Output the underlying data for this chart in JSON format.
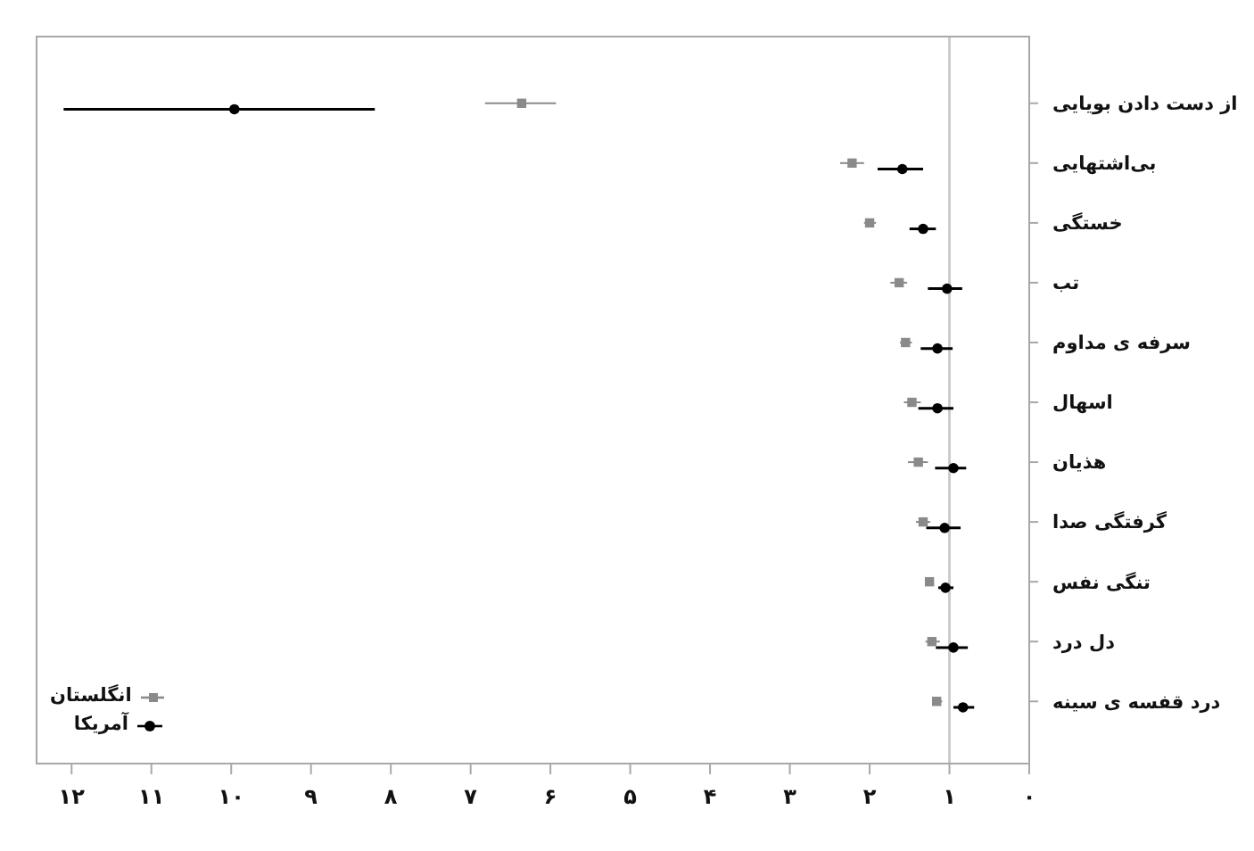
{
  "chart_data": {
    "type": "scatter",
    "orientation": "horizontal",
    "categories": [
      "از دست دادن بویایی",
      "بی‌اشتهایی",
      "خستگی",
      "تب",
      "سرفه ی مداوم",
      "اسهال",
      "هذیان",
      "گرفتگی صدا",
      "تنگی نفس",
      "دل درد",
      "درد قفسه ی سینه"
    ],
    "series": [
      {
        "name": "انگلستان",
        "color": "#8a8a8a",
        "marker": "square",
        "values": [
          6.36,
          2.22,
          2.0,
          1.63,
          1.55,
          1.47,
          1.39,
          1.33,
          1.25,
          1.22,
          1.16
        ],
        "errors": [
          [
            5.93,
            6.82
          ],
          [
            2.07,
            2.37
          ],
          [
            1.92,
            2.07
          ],
          [
            1.53,
            1.74
          ],
          [
            1.47,
            1.62
          ],
          [
            1.36,
            1.57
          ],
          [
            1.27,
            1.52
          ],
          [
            1.24,
            1.42
          ],
          null,
          [
            1.12,
            1.3
          ],
          [
            1.09,
            1.21
          ]
        ]
      },
      {
        "name": "آمریکا",
        "color": "#000000",
        "marker": "circle",
        "values": [
          9.96,
          1.59,
          1.33,
          1.03,
          1.15,
          1.15,
          0.95,
          1.06,
          1.05,
          0.95,
          0.83
        ],
        "errors": [
          [
            8.2,
            12.1
          ],
          [
            1.33,
            1.9
          ],
          [
            1.17,
            1.5
          ],
          [
            0.84,
            1.27
          ],
          [
            0.96,
            1.36
          ],
          [
            0.95,
            1.39
          ],
          [
            0.79,
            1.18
          ],
          [
            0.86,
            1.29
          ],
          [
            0.95,
            1.14
          ],
          [
            0.77,
            1.17
          ],
          [
            0.69,
            0.95
          ]
        ]
      }
    ],
    "xlim": [
      12.45,
      0
    ],
    "xticks": [
      {
        "value": 12,
        "label": "۱۲"
      },
      {
        "value": 11,
        "label": "۱۱"
      },
      {
        "value": 10,
        "label": "۱۰"
      },
      {
        "value": 9,
        "label": "۹"
      },
      {
        "value": 8,
        "label": "۸"
      },
      {
        "value": 7,
        "label": "۷"
      },
      {
        "value": 6,
        "label": "۶"
      },
      {
        "value": 5,
        "label": "۵"
      },
      {
        "value": 4,
        "label": "۴"
      },
      {
        "value": 3,
        "label": "۳"
      },
      {
        "value": 2,
        "label": "۲"
      },
      {
        "value": 1,
        "label": "۱"
      },
      {
        "value": 0,
        "label": "۰"
      }
    ],
    "ref_lines": [
      {
        "axis": "x",
        "value": 1,
        "color": "#cccccc"
      }
    ],
    "legend": "bottom left"
  }
}
